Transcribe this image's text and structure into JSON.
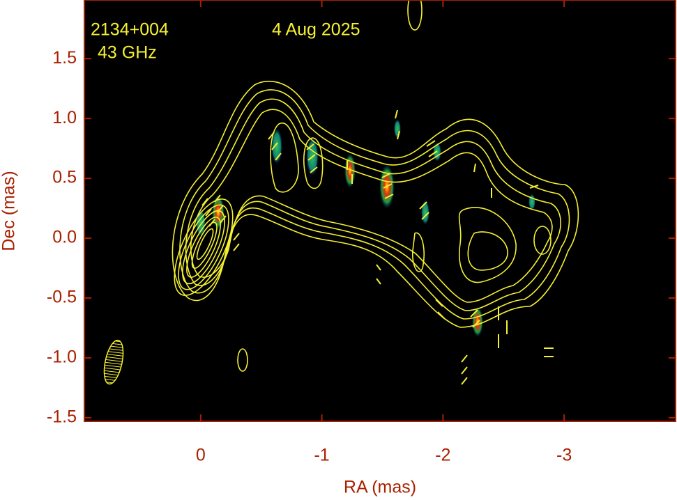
{
  "chart_data": {
    "type": "image",
    "source": "2134+004",
    "frequency": "43 GHz",
    "date": "4 Aug 2025",
    "x_label": "RA (mas)",
    "y_label": "Dec (mas)",
    "xlim": [
      0.96,
      -3.92
    ],
    "ylim": [
      -1.53,
      1.99
    ],
    "xticks": [
      0,
      -1,
      -2,
      -3
    ],
    "yticks": [
      1.5,
      {
        "value": 1.0,
        "label": "1.0"
      },
      0.5,
      {
        "value": 0.0,
        "label": "0.0"
      },
      -0.5,
      {
        "value": -1.0,
        "label": "-1.0"
      },
      -1.5
    ],
    "axis_color": "#a82000",
    "contour_color": "#f5f032"
  }
}
